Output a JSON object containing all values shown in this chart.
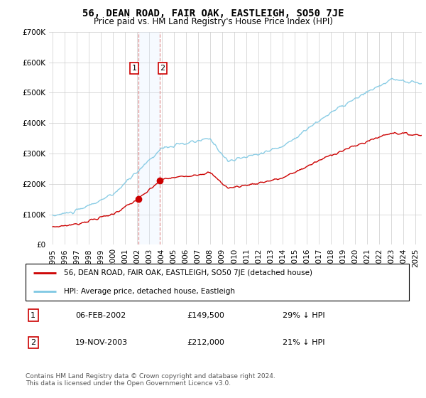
{
  "title": "56, DEAN ROAD, FAIR OAK, EASTLEIGH, SO50 7JE",
  "subtitle": "Price paid vs. HM Land Registry's House Price Index (HPI)",
  "hpi_label": "HPI: Average price, detached house, Eastleigh",
  "property_label": "56, DEAN ROAD, FAIR OAK, EASTLEIGH, SO50 7JE (detached house)",
  "transaction1_date": "06-FEB-2002",
  "transaction1_price": "£149,500",
  "transaction1_hpi": "29% ↓ HPI",
  "transaction2_date": "19-NOV-2003",
  "transaction2_price": "£212,000",
  "transaction2_hpi": "21% ↓ HPI",
  "footnote": "Contains HM Land Registry data © Crown copyright and database right 2024.\nThis data is licensed under the Open Government Licence v3.0.",
  "hpi_color": "#7ec8e3",
  "property_color": "#cc0000",
  "highlight_color": "#ddeeff",
  "highlight_border_color": "#cc4444",
  "ylim": [
    0,
    700000
  ],
  "yticks": [
    0,
    100000,
    200000,
    300000,
    400000,
    500000,
    600000,
    700000
  ],
  "xmin": 1994.7,
  "xmax": 2025.5,
  "t1": 2002.08,
  "t2": 2003.88,
  "sale1_price": 149500,
  "sale2_price": 212000,
  "hpi_seed": 10,
  "prop_seed": 7
}
